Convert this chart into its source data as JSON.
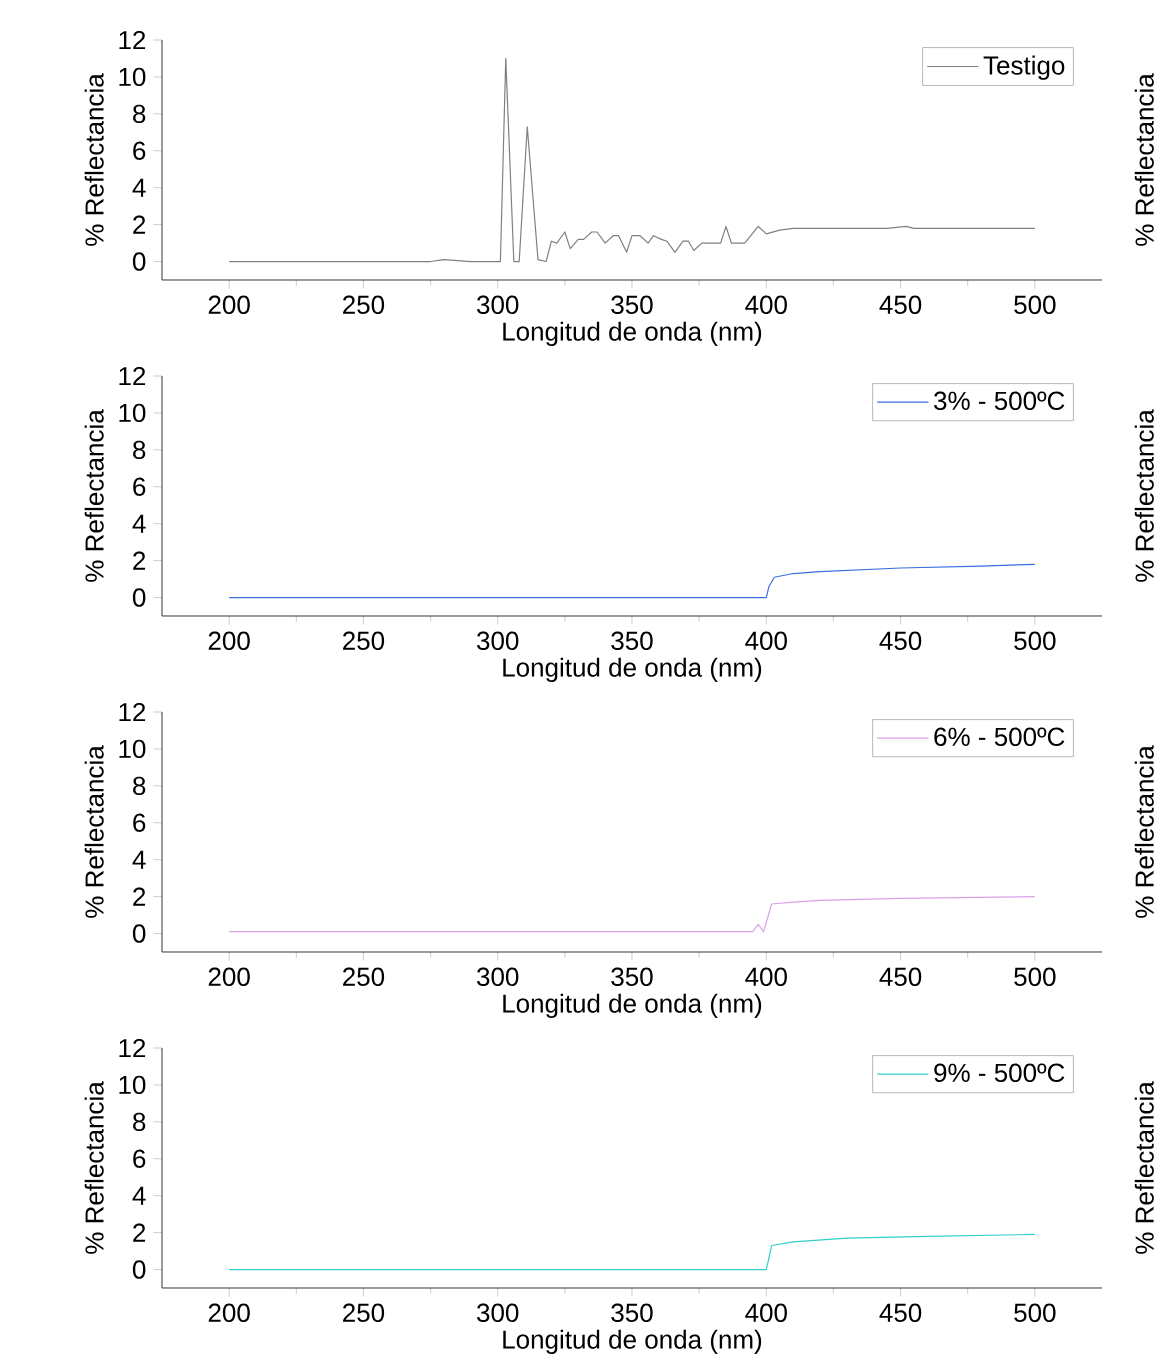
{
  "chart_data": [
    {
      "type": "line",
      "xlabel": "Longitud de onda (nm)",
      "ylabel": "% Reflectancia",
      "y2label": "% Reflectancia",
      "xlim": [
        175,
        525
      ],
      "ylim": [
        -1,
        12
      ],
      "xticks": [
        200,
        250,
        300,
        350,
        400,
        450,
        500
      ],
      "yticks": [
        0,
        2,
        4,
        6,
        8,
        10,
        12
      ],
      "legend": "top right",
      "series": [
        {
          "name": "Testigo",
          "color": "#808080",
          "x": [
            200,
            275,
            280,
            290,
            300,
            301,
            303,
            306,
            308,
            311,
            315,
            318,
            320,
            322,
            325,
            327,
            330,
            332,
            335,
            337,
            340,
            343,
            345,
            348,
            350,
            353,
            356,
            358,
            361,
            363,
            366,
            369,
            371,
            373,
            376,
            380,
            383,
            385,
            387,
            392,
            397,
            400,
            405,
            410,
            420,
            430,
            445,
            452,
            455,
            480,
            500
          ],
          "values": [
            0,
            0,
            0.1,
            0,
            0,
            0,
            11,
            0,
            0,
            7.3,
            0.1,
            0,
            1.1,
            1.0,
            1.6,
            0.7,
            1.2,
            1.2,
            1.6,
            1.6,
            1.0,
            1.4,
            1.4,
            0.5,
            1.4,
            1.4,
            1.0,
            1.4,
            1.2,
            1.1,
            0.5,
            1.1,
            1.1,
            0.6,
            1.0,
            1.0,
            1.0,
            1.9,
            1.0,
            1.0,
            1.9,
            1.5,
            1.7,
            1.8,
            1.8,
            1.8,
            1.8,
            1.9,
            1.8,
            1.8,
            1.8
          ]
        }
      ]
    },
    {
      "type": "line",
      "xlabel": "Longitud de onda (nm)",
      "ylabel": "% Reflectancia",
      "y2label": "% Reflectancia",
      "xlim": [
        175,
        525
      ],
      "ylim": [
        -1,
        12
      ],
      "xticks": [
        200,
        250,
        300,
        350,
        400,
        450,
        500
      ],
      "yticks": [
        0,
        2,
        4,
        6,
        8,
        10,
        12
      ],
      "legend": "top right",
      "series": [
        {
          "name": "3% - 500ºC",
          "color": "#3a6fe0",
          "x": [
            200,
            400,
            401,
            403,
            410,
            420,
            450,
            480,
            500
          ],
          "values": [
            0,
            0,
            0.6,
            1.1,
            1.3,
            1.4,
            1.6,
            1.7,
            1.8
          ]
        }
      ]
    },
    {
      "type": "line",
      "xlabel": "Longitud de onda (nm)",
      "ylabel": "% Reflectancia",
      "y2label": "% Reflectancia",
      "xlim": [
        175,
        525
      ],
      "ylim": [
        -1,
        12
      ],
      "xticks": [
        200,
        250,
        300,
        350,
        400,
        450,
        500
      ],
      "yticks": [
        0,
        2,
        4,
        6,
        8,
        10,
        12
      ],
      "legend": "top right",
      "series": [
        {
          "name": "6% - 500ºC",
          "color": "#d9a0e8",
          "x": [
            200,
            395,
            397,
            399,
            402,
            410,
            420,
            450,
            500
          ],
          "values": [
            0.1,
            0.1,
            0.5,
            0.1,
            1.6,
            1.7,
            1.8,
            1.9,
            2.0
          ]
        }
      ]
    },
    {
      "type": "line",
      "xlabel": "Longitud de onda (nm)",
      "ylabel": "% Reflectancia",
      "y2label": "% Reflectancia",
      "xlim": [
        175,
        525
      ],
      "ylim": [
        -1,
        12
      ],
      "xticks": [
        200,
        250,
        300,
        350,
        400,
        450,
        500
      ],
      "yticks": [
        0,
        2,
        4,
        6,
        8,
        10,
        12
      ],
      "legend": "top right",
      "series": [
        {
          "name": "9% - 500ºC",
          "color": "#30d0c8",
          "x": [
            200,
            400,
            402,
            410,
            430,
            460,
            500
          ],
          "values": [
            0,
            0,
            1.3,
            1.5,
            1.7,
            1.8,
            1.9
          ]
        }
      ]
    }
  ]
}
